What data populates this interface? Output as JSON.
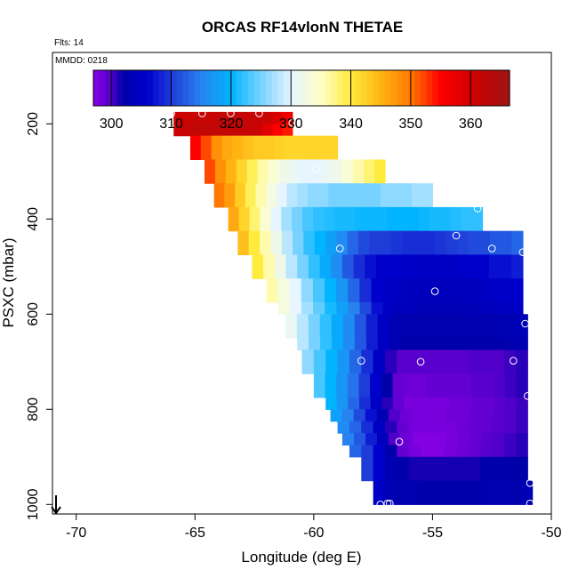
{
  "chart_data": {
    "type": "heatmap",
    "title": "ORCAS RF14vlonN THETAE",
    "subtitle_flts": "Flts: 14",
    "subtitle_mmdd": "MMDD: 0218",
    "xlabel": "Longitude (deg E)",
    "ylabel": "PSXC (mbar)",
    "xlim": [
      -71,
      -50
    ],
    "ylim": [
      1020,
      50
    ],
    "xticks": [
      -70,
      -65,
      -60,
      -55,
      -50
    ],
    "yticks": [
      200,
      400,
      600,
      800,
      1000
    ],
    "colorbar": {
      "range": [
        297,
        366.5
      ],
      "ticks": [
        300,
        310,
        320,
        330,
        340,
        350,
        360
      ]
    },
    "grid_bins": {
      "x_start": -71,
      "x_step": 0.5,
      "p_start": 50,
      "p_step": 25
    },
    "rows": [
      {
        "p": 187.5,
        "x0": -65.9,
        "x1": -60.9,
        "values": [
          360.5,
          361,
          361.5,
          361.5,
          362,
          362,
          362,
          361.5,
          361.5,
          361,
          359,
          357
        ]
      },
      {
        "p": 212.5,
        "x0": -65.9,
        "x1": -60.9,
        "values": [
          361,
          361.5,
          362,
          362,
          362,
          362,
          361.5,
          361.5,
          361,
          358,
          355,
          354
        ]
      },
      {
        "p": 237.5,
        "x0": -65.2,
        "x1": -59.0,
        "values": [
          355,
          352,
          348,
          346,
          345,
          344,
          343,
          343,
          342.5,
          342,
          342,
          342,
          342,
          342
        ]
      },
      {
        "p": 262.5,
        "x0": -65.2,
        "x1": -59.0,
        "values": [
          355,
          352,
          348,
          346,
          345,
          344,
          343,
          343,
          342.5,
          342,
          342,
          342,
          342,
          342
        ]
      },
      {
        "p": 287.5,
        "x0": -64.6,
        "x1": -57.0,
        "values": [
          352,
          348,
          345,
          342,
          339,
          336,
          334,
          332,
          331,
          330,
          330,
          331,
          332,
          334,
          336,
          338,
          340
        ]
      },
      {
        "p": 312.5,
        "x0": -64.6,
        "x1": -57.0,
        "values": [
          352,
          348,
          345,
          342,
          339,
          336,
          334,
          332,
          331,
          330,
          330,
          331,
          332,
          334,
          336,
          338,
          340
        ]
      },
      {
        "p": 337.5,
        "x0": -64.2,
        "x1": -55.0,
        "values": [
          350,
          347,
          343,
          339,
          336,
          333,
          330,
          328,
          327,
          326,
          326,
          325,
          325,
          325,
          325,
          325,
          326,
          326,
          326,
          327,
          327
        ]
      },
      {
        "p": 362.5,
        "x0": -64.2,
        "x1": -55.0,
        "values": [
          350,
          347,
          343,
          339,
          336,
          333,
          330,
          328,
          327,
          326,
          326,
          325,
          325,
          325,
          325,
          325,
          326,
          326,
          326,
          327,
          327
        ]
      },
      {
        "p": 387.5,
        "x0": -63.6,
        "x1": -52.9,
        "values": [
          346,
          342,
          338,
          334,
          330,
          327,
          325,
          323,
          322,
          321.5,
          321,
          321,
          320.5,
          320.5,
          320.5,
          320,
          320,
          320,
          320.5,
          321,
          321,
          321.5,
          322,
          322
        ]
      },
      {
        "p": 412.5,
        "x0": -63.6,
        "x1": -52.9,
        "values": [
          346,
          342,
          338,
          334,
          330,
          327,
          325,
          323,
          322,
          321.5,
          321,
          321,
          320.5,
          320.5,
          320.5,
          320,
          320,
          320,
          320.5,
          321,
          321,
          321.5,
          322,
          322
        ]
      },
      {
        "p": 437.5,
        "x0": -63.2,
        "x1": -51.2,
        "values": [
          344,
          340,
          336,
          332,
          328,
          325,
          322,
          320,
          318,
          316,
          313,
          311,
          310,
          310,
          309.5,
          309,
          309,
          309,
          309.5,
          310,
          310.5,
          311,
          311,
          312,
          312,
          313
        ]
      },
      {
        "p": 462.5,
        "x0": -63.2,
        "x1": -51.2,
        "values": [
          344,
          340,
          336,
          332,
          328,
          325,
          322,
          320,
          318,
          316,
          313,
          311,
          310,
          310,
          309.5,
          309,
          309,
          309,
          309.5,
          310,
          310.5,
          311,
          311,
          312,
          312,
          313
        ]
      },
      {
        "p": 487.5,
        "x0": -62.6,
        "x1": -51.2,
        "values": [
          340,
          336,
          332,
          328,
          325,
          322,
          319,
          316,
          312,
          309,
          307,
          306,
          306,
          305.5,
          305.5,
          305,
          305,
          305,
          305.5,
          306,
          306,
          307,
          307,
          308
        ]
      },
      {
        "p": 512.5,
        "x0": -62.6,
        "x1": -51.2,
        "values": [
          340,
          336,
          332,
          328,
          325,
          322,
          319,
          316,
          312,
          309,
          307,
          306,
          306,
          305.5,
          305.5,
          305,
          305,
          305,
          305.5,
          306,
          306,
          307,
          307,
          308
        ]
      },
      {
        "p": 537.5,
        "x0": -62.0,
        "x1": -51.2,
        "values": [
          336,
          333,
          330,
          326,
          323,
          320,
          317,
          313,
          309,
          306,
          305,
          304.5,
          304,
          304,
          304,
          304,
          304,
          304,
          304.5,
          305,
          305.5,
          306
        ]
      },
      {
        "p": 562.5,
        "x0": -62.0,
        "x1": -51.2,
        "values": [
          336,
          333,
          330,
          326,
          323,
          320,
          317,
          313,
          309,
          306,
          305,
          304.5,
          304,
          304,
          304,
          304,
          304,
          304,
          304.5,
          305,
          305.5,
          306
        ]
      },
      {
        "p": 587.5,
        "x0": -61.5,
        "x1": -51.2,
        "values": [
          333,
          330,
          327,
          324,
          321,
          318,
          315,
          311,
          307,
          305,
          304,
          304,
          303.5,
          303.5,
          303.5,
          303.5,
          303.5,
          304,
          304,
          304.5,
          305
        ]
      },
      {
        "p": 612.5,
        "x0": -61.2,
        "x1": -51.0,
        "values": [
          331,
          328,
          325,
          322,
          319,
          316,
          312,
          308,
          305,
          303,
          302.5,
          302.5,
          302.5,
          302.5,
          302.5,
          302.5,
          302.5,
          302.5,
          303,
          303,
          303.5
        ]
      },
      {
        "p": 637.5,
        "x0": -61.2,
        "x1": -51.0,
        "values": [
          331,
          328,
          325,
          322,
          319,
          316,
          312,
          308,
          305,
          303,
          302.5,
          302.5,
          302.5,
          302.5,
          302.5,
          302.5,
          302.5,
          302.5,
          303,
          303,
          303.5
        ]
      },
      {
        "p": 662.5,
        "x0": -60.7,
        "x1": -51.0,
        "values": [
          328,
          325,
          322,
          319,
          316,
          312,
          308,
          305,
          303,
          302,
          302,
          302,
          302,
          302,
          302,
          302,
          302,
          302,
          302.5,
          303
        ]
      },
      {
        "p": 687.5,
        "x0": -60.5,
        "x1": -51.0,
        "values": [
          326,
          323,
          320,
          317,
          313,
          309,
          305,
          301,
          299.5,
          299.5,
          299.5,
          299.5,
          299.5,
          299.5,
          300,
          300,
          300,
          300.5,
          301
        ]
      },
      {
        "p": 712.5,
        "x0": -60.5,
        "x1": -51.0,
        "values": [
          326,
          323,
          320,
          317,
          313,
          309,
          305,
          301,
          299.5,
          299.5,
          299.5,
          299.5,
          299.5,
          299.5,
          300,
          300,
          300,
          300.5,
          301
        ]
      },
      {
        "p": 737.5,
        "x0": -60.0,
        "x1": -51.0,
        "values": [
          323,
          320,
          317,
          314,
          310,
          306,
          302,
          299,
          298.5,
          298.5,
          299,
          299,
          299,
          299,
          299.5,
          299.5,
          300,
          300.5,
          301
        ]
      },
      {
        "p": 762.5,
        "x0": -60.0,
        "x1": -51.0,
        "values": [
          323,
          320,
          317,
          314,
          310,
          306,
          302,
          299,
          298.5,
          298.5,
          299,
          299,
          299,
          299,
          299.5,
          299.5,
          300,
          300.5,
          301
        ]
      },
      {
        "p": 787.5,
        "x0": -59.5,
        "x1": -51.0,
        "values": [
          320,
          317,
          313,
          309,
          305,
          301,
          299,
          298,
          298,
          298,
          298,
          298.5,
          298.5,
          299,
          299,
          299.5,
          300,
          300.5
        ]
      },
      {
        "p": 812.5,
        "x0": -59.3,
        "x1": -51.0,
        "values": [
          318,
          315,
          311,
          307,
          303,
          300,
          298.5,
          298,
          298,
          298,
          298.5,
          298.5,
          299,
          299,
          299.5,
          300,
          300.5
        ]
      },
      {
        "p": 837.5,
        "x0": -59.0,
        "x1": -51.0,
        "values": [
          316,
          313,
          309,
          305,
          301,
          299,
          298,
          298,
          298,
          298,
          298.5,
          299,
          299,
          299.5,
          300,
          300.5
        ]
      },
      {
        "p": 862.5,
        "x0": -58.8,
        "x1": -51.0,
        "values": [
          315,
          312,
          308,
          304,
          300,
          298.5,
          297.5,
          297.5,
          297.5,
          298,
          298.5,
          299,
          299.5,
          300,
          300.5,
          301
        ]
      },
      {
        "p": 887.5,
        "x0": -58.5,
        "x1": -51.0,
        "values": [
          313,
          310,
          306,
          302,
          299,
          298,
          297.5,
          297.5,
          298,
          298.5,
          299,
          299.5,
          300,
          300.5,
          301
        ]
      },
      {
        "p": 912.5,
        "x0": -58.0,
        "x1": -51.0,
        "values": [
          310,
          306,
          303,
          302,
          301.5,
          301.5,
          301.5,
          301.5,
          301.5,
          301.5,
          302,
          302,
          302,
          302
        ]
      },
      {
        "p": 937.5,
        "x0": -58.0,
        "x1": -51.0,
        "values": [
          310,
          306,
          303,
          302,
          301.5,
          301.5,
          301.5,
          301.5,
          301.5,
          301.5,
          302,
          302,
          302,
          302
        ]
      },
      {
        "p": 962.5,
        "x0": -57.5,
        "x1": -50.8,
        "values": [
          305,
          303,
          302.5,
          302.5,
          302,
          302,
          302,
          302,
          302,
          302.5,
          302.5,
          302.5,
          303
        ]
      },
      {
        "p": 987.5,
        "x0": -57.5,
        "x1": -50.8,
        "values": [
          305,
          303,
          302.5,
          302.5,
          302,
          302,
          302,
          302,
          302,
          302.5,
          302.5,
          302.5,
          303
        ]
      }
    ],
    "points": [
      {
        "x": -66.0,
        "p": 178
      },
      {
        "x": -64.7,
        "p": 178
      },
      {
        "x": -63.5,
        "p": 178
      },
      {
        "x": -62.3,
        "p": 178
      },
      {
        "x": -60.9,
        "p": 198
      },
      {
        "x": -59.9,
        "p": 295
      },
      {
        "x": -53.1,
        "p": 378
      },
      {
        "x": -54.0,
        "p": 435
      },
      {
        "x": -58.9,
        "p": 462
      },
      {
        "x": -52.5,
        "p": 462
      },
      {
        "x": -51.2,
        "p": 470
      },
      {
        "x": -54.9,
        "p": 552
      },
      {
        "x": -51.1,
        "p": 620
      },
      {
        "x": -58.0,
        "p": 698
      },
      {
        "x": -55.5,
        "p": 700
      },
      {
        "x": -51.6,
        "p": 698
      },
      {
        "x": -51.0,
        "p": 772
      },
      {
        "x": -56.4,
        "p": 868
      },
      {
        "x": -50.9,
        "p": 955
      },
      {
        "x": -57.2,
        "p": 1000
      },
      {
        "x": -56.9,
        "p": 998
      },
      {
        "x": -56.8,
        "p": 998
      },
      {
        "x": -50.9,
        "p": 998
      }
    ]
  }
}
